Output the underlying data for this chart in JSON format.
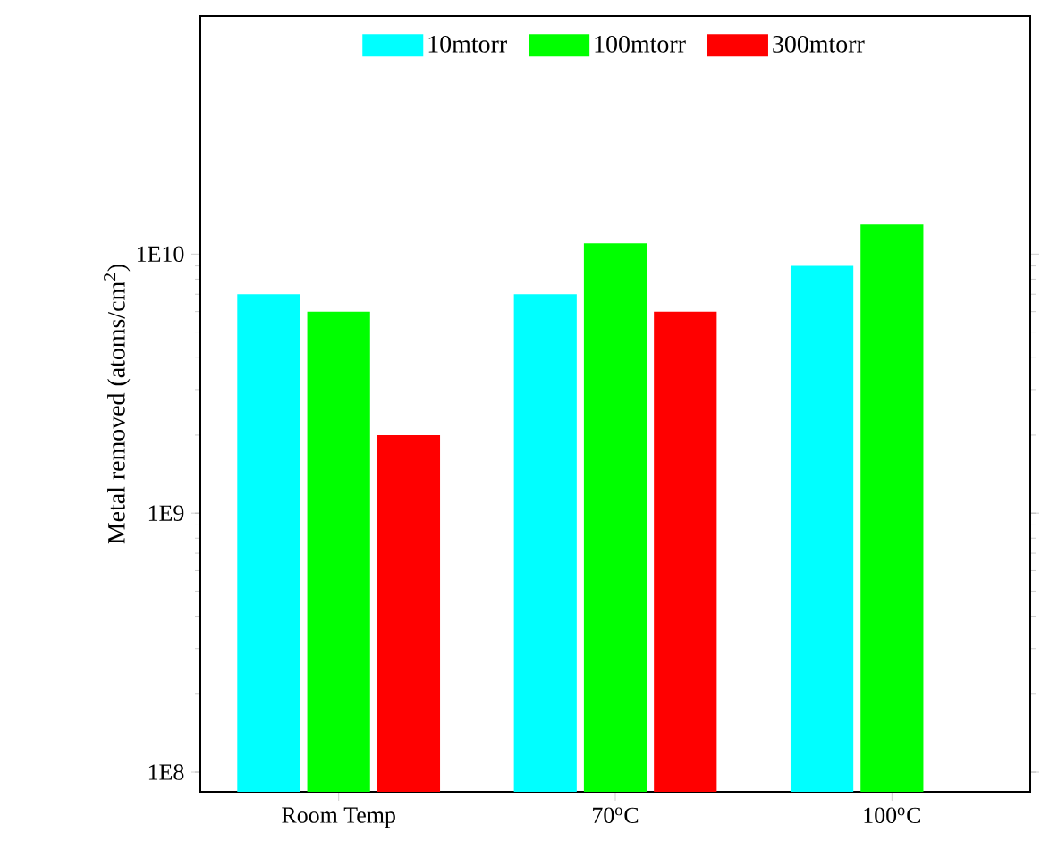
{
  "chart_data": {
    "type": "bar",
    "ylabel": "Metal removed (atoms/cm$^{2}$)",
    "categories": [
      "Room Temp",
      "70$^{o}$C",
      "100$^{o}$C"
    ],
    "series": [
      {
        "name": "10mtorr",
        "color": "#00ffff",
        "values": [
          7000000000.0,
          7000000000.0,
          9000000000.0
        ]
      },
      {
        "name": "100mtorr",
        "color": "#00ff00",
        "values": [
          6000000000.0,
          11000000000.0,
          13000000000.0
        ]
      },
      {
        "name": "300mtorr",
        "color": "#ff0000",
        "values": [
          2000000000.0,
          6000000000.0,
          null
        ]
      }
    ],
    "log": "y",
    "ylim": [
      84000000.0,
      83000000000.0
    ],
    "yticks": [
      {
        "value": 100000000.0,
        "label": "1E8"
      },
      {
        "value": 1000000000.0,
        "label": "1E9"
      },
      {
        "value": 10000000000.0,
        "label": "1E10"
      }
    ],
    "legend": "top",
    "grid": false
  }
}
